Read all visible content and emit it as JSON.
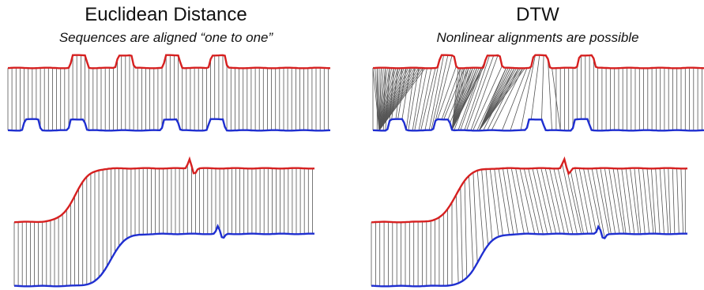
{
  "panels": [
    {
      "id": "euclidean",
      "title": "Euclidean Distance",
      "subtitle": "Sequences are aligned “one to one”",
      "alignment": "one-to-one"
    },
    {
      "id": "dtw",
      "title": "DTW",
      "subtitle": "Nonlinear alignments are possible",
      "alignment": "nonlinear"
    }
  ],
  "colors": {
    "upper_series": "#d62020",
    "lower_series": "#1f2fd0",
    "alignment_lines": "#555555"
  },
  "examples": [
    {
      "id": "pulses",
      "shape": "periodic rounded pulses",
      "pulse_count": 4
    },
    {
      "id": "step",
      "shape": "sigmoid step with a small spike"
    }
  ]
}
